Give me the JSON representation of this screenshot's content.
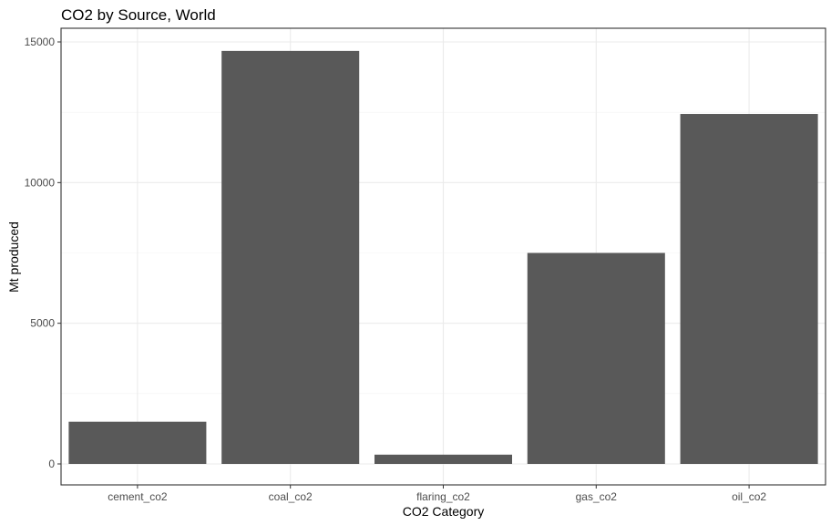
{
  "chart_data": {
    "type": "bar",
    "title": "CO2 by Source, World",
    "xlabel": "CO2 Category",
    "ylabel": "Mt produced",
    "categories": [
      "cement_co2",
      "coal_co2",
      "flaring_co2",
      "gas_co2",
      "oil_co2"
    ],
    "values": [
      1500,
      14680,
      330,
      7500,
      12440
    ],
    "ylim": [
      0,
      15500
    ],
    "yticks": [
      0,
      5000,
      10000,
      15000
    ],
    "ytick_labels": [
      "0",
      "5000",
      "10000",
      "15000"
    ],
    "grid": true,
    "legend": "none",
    "bar_color": "#595959"
  }
}
